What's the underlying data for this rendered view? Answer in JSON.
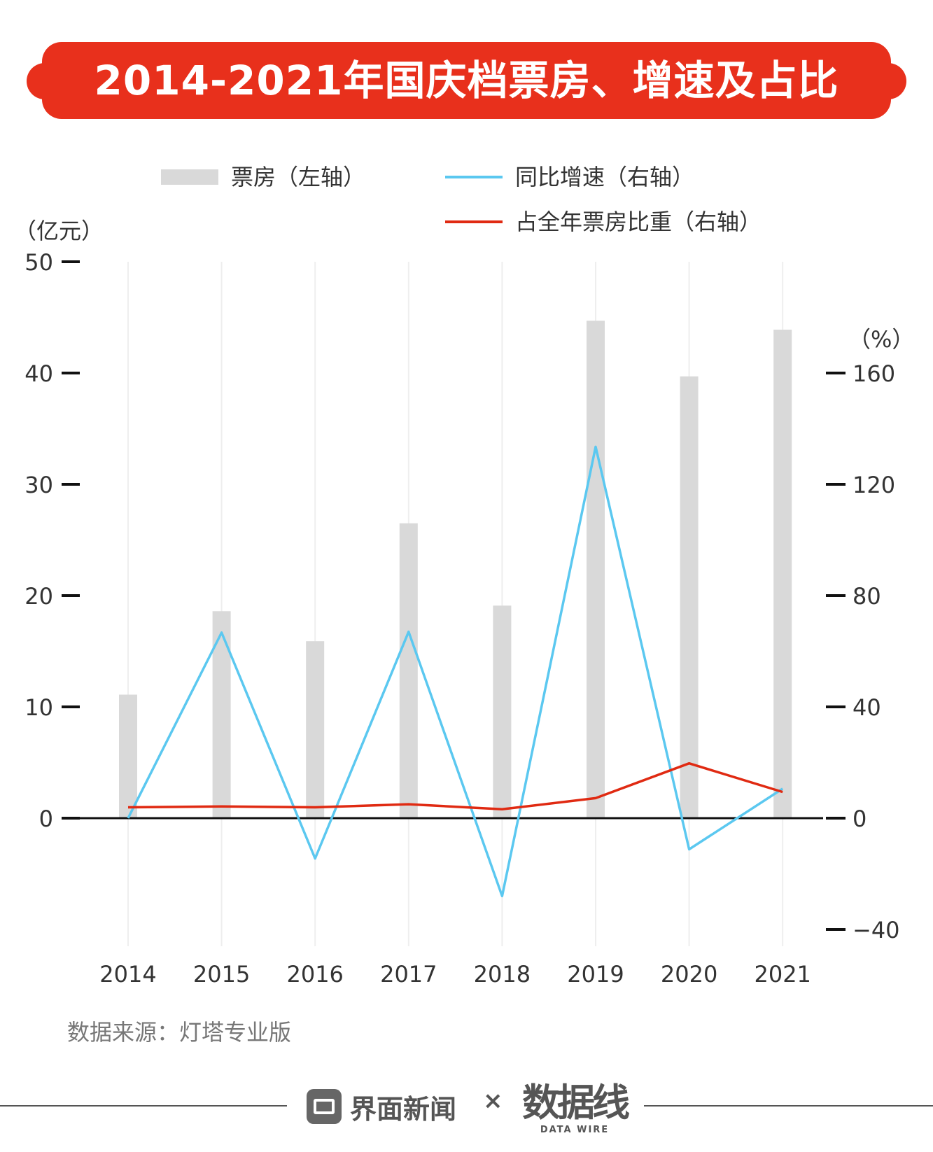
{
  "title": "2014-2021年国庆档票房、增速及占比",
  "colors": {
    "banner": "#e8301c",
    "bar": "#d9d9d9",
    "growth_line": "#5bc8f0",
    "share_line": "#e02a12",
    "axis": "#111111",
    "gridline": "#eeeeee"
  },
  "left_unit": "（亿元）",
  "right_unit": "（%）",
  "legend": [
    {
      "label": "票房（左轴）",
      "kind": "bar"
    },
    {
      "label": "同比增速（右轴）",
      "kind": "growth"
    },
    {
      "label": "占全年票房比重（右轴）",
      "kind": "share"
    }
  ],
  "chart_data": {
    "type": "bar",
    "categories": [
      "2014",
      "2015",
      "2016",
      "2017",
      "2018",
      "2019",
      "2020",
      "2021"
    ],
    "left_axis": {
      "ylim": [
        0,
        50
      ],
      "ticks": [
        "0",
        "10",
        "20",
        "30",
        "40",
        "50"
      ],
      "tick_values": [
        0,
        10,
        20,
        30,
        40,
        50
      ]
    },
    "right_axis": {
      "ylim": [
        -40,
        160
      ],
      "ticks": [
        "−40",
        "0",
        "40",
        "80",
        "120",
        "160"
      ],
      "tick_values": [
        -40,
        0,
        40,
        80,
        120,
        160
      ]
    },
    "series": [
      {
        "name": "票房（左轴）",
        "type": "bar",
        "axis": "left",
        "values": [
          11.1,
          18.6,
          15.9,
          26.5,
          19.1,
          44.7,
          39.7,
          43.9
        ]
      },
      {
        "name": "同比增速（右轴）",
        "type": "line",
        "axis": "right",
        "values": [
          0,
          66.7,
          -14.5,
          67.0,
          -28.0,
          133.5,
          -11.2,
          10.6
        ]
      },
      {
        "name": "占全年票房比重（右轴）",
        "type": "line",
        "axis": "right",
        "values": [
          3.9,
          4.2,
          3.9,
          5.0,
          3.2,
          7.2,
          19.7,
          9.4
        ]
      }
    ],
    "grid": "vertical"
  },
  "source": "数据来源：灯塔专业版",
  "footer": {
    "brand1": "界面新闻",
    "times": "×",
    "brand2": "数据线",
    "brand2_sub": "DATA WIRE"
  }
}
